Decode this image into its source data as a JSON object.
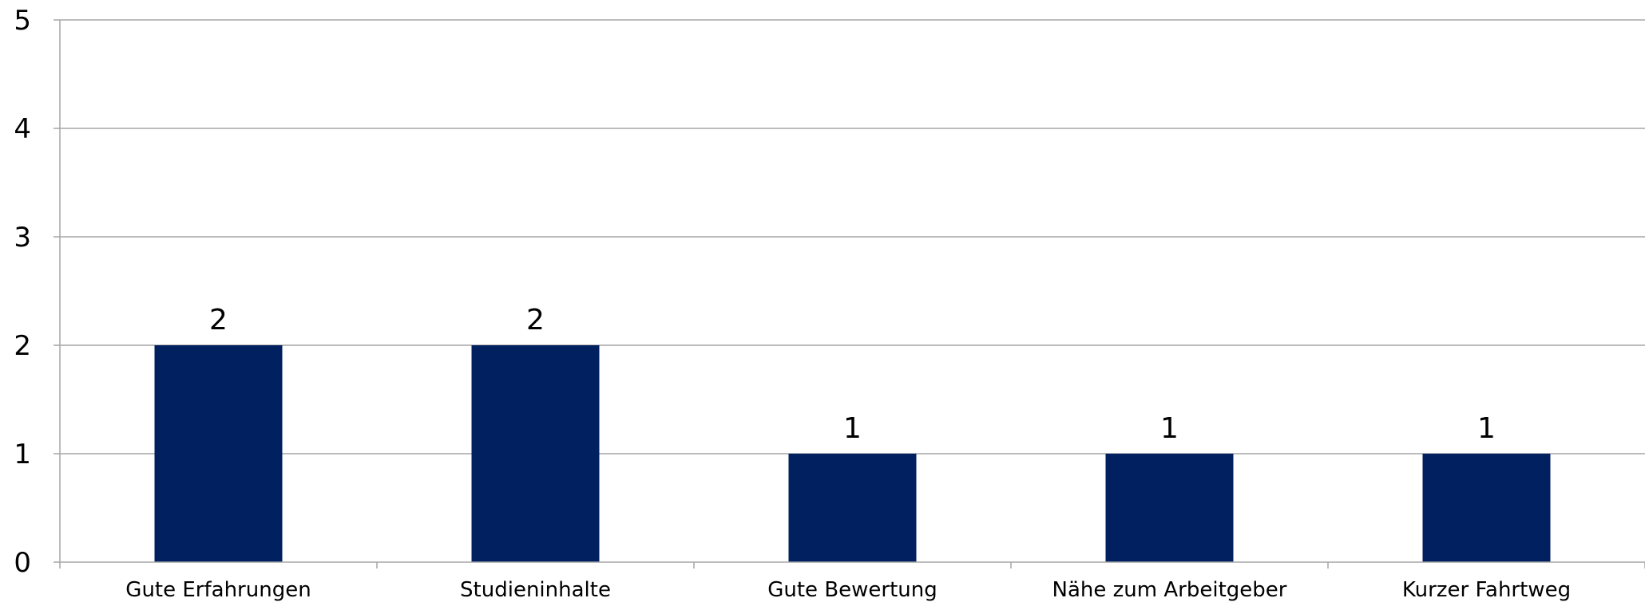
{
  "chart_data": {
    "type": "bar",
    "title": "",
    "xlabel": "",
    "ylabel": "",
    "categories": [
      "Gute Erfahrungen",
      "Studieninhalte",
      "Gute Bewertung",
      "Nähe zum Arbeitgeber",
      "Kurzer Fahrtweg"
    ],
    "values": [
      2,
      2,
      1,
      1,
      1
    ],
    "ylim": [
      0,
      5
    ],
    "yticks": [
      "0",
      "1",
      "2",
      "3",
      "4",
      "5"
    ],
    "data_labels": [
      "2",
      "2",
      "1",
      "1",
      "1"
    ],
    "grid": true,
    "legend": "none",
    "bar_color": "#002060"
  }
}
